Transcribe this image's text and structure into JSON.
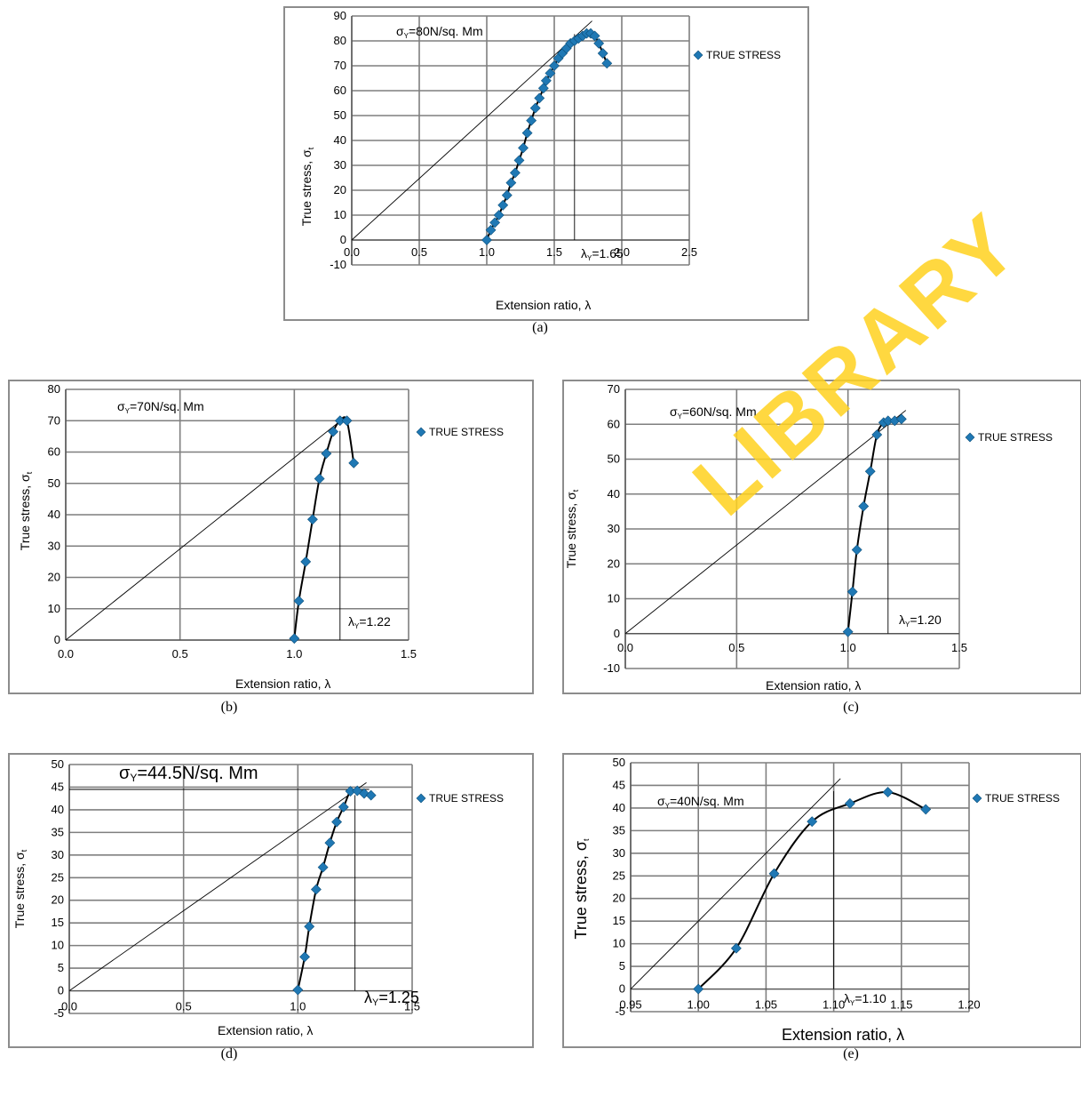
{
  "watermark": {
    "text": "LIBRARY",
    "color": "#ffd21f"
  },
  "colors": {
    "marker": "#1f78b4",
    "line": "#000000",
    "grid": "#7f7f7f",
    "frame": "#8c8c8c"
  },
  "legend_label": "TRUE STRESS",
  "chart_data": [
    {
      "id": "a",
      "type": "scatter",
      "caption": "(a)",
      "xlabel": "Extension ratio,",
      "xlabel_symbol": "λ",
      "ylabel": "True stress,",
      "ylabel_symbol": "σ",
      "ylabel_sub": "t",
      "xlim": [
        0,
        2.5
      ],
      "ylim": [
        -10,
        90
      ],
      "xticks": [
        0,
        0.5,
        1.0,
        1.5,
        2.0,
        2.5
      ],
      "xtick_labels": [
        "0.0",
        "0.5",
        "1.0",
        "1.5",
        "2.0",
        "2.5"
      ],
      "yticks": [
        -10,
        0,
        10,
        20,
        30,
        40,
        50,
        60,
        70,
        80,
        90
      ],
      "ytick_labels": [
        "-10",
        "0",
        "10",
        "20",
        "30",
        "40",
        "50",
        "60",
        "70",
        "80",
        "90"
      ],
      "grid": true,
      "legend": "right",
      "series": [
        {
          "name": "TRUE STRESS",
          "x": [
            1.0,
            1.03,
            1.06,
            1.09,
            1.12,
            1.15,
            1.18,
            1.21,
            1.24,
            1.27,
            1.3,
            1.33,
            1.36,
            1.39,
            1.42,
            1.44,
            1.47,
            1.5,
            1.53,
            1.56,
            1.59,
            1.62,
            1.65,
            1.68,
            1.71,
            1.74,
            1.77,
            1.8,
            1.83,
            1.86,
            1.89
          ],
          "y": [
            0,
            4,
            7,
            10,
            14,
            18,
            23,
            27,
            32,
            37,
            43,
            48,
            53,
            57,
            61,
            64,
            67,
            70,
            73,
            75,
            77,
            79,
            80,
            81,
            82,
            83,
            83,
            82,
            79,
            75,
            71
          ]
        }
      ],
      "annotations": {
        "sigma_label": "σ",
        "sigma_sub": "Y",
        "sigma_text": "=80N/sq. Mm",
        "lambda_label": "λ",
        "lambda_sub": "Y",
        "lambda_text": "=1.65",
        "lambda_y": 1.65,
        "tangent_end": [
          1.78,
          88
        ]
      }
    },
    {
      "id": "b",
      "type": "scatter",
      "caption": "(b)",
      "xlabel": "Extension ratio,",
      "xlabel_symbol": "λ",
      "ylabel": "True stress,",
      "ylabel_symbol": "σ",
      "ylabel_sub": "t",
      "xlim": [
        0,
        1.5
      ],
      "ylim": [
        0,
        80
      ],
      "xticks": [
        0,
        0.5,
        1.0,
        1.5
      ],
      "xtick_labels": [
        "0.0",
        "0.5",
        "1.0",
        "1.5"
      ],
      "yticks": [
        0,
        10,
        20,
        30,
        40,
        50,
        60,
        70,
        80
      ],
      "ytick_labels": [
        "0",
        "10",
        "20",
        "30",
        "40",
        "50",
        "60",
        "70",
        "80"
      ],
      "grid": true,
      "legend": "right",
      "series": [
        {
          "name": "TRUE STRESS",
          "x": [
            1.0,
            1.02,
            1.05,
            1.08,
            1.11,
            1.14,
            1.17,
            1.2,
            1.23,
            1.26
          ],
          "y": [
            0.5,
            12.5,
            25,
            38.5,
            51.5,
            59.5,
            66.5,
            70,
            70,
            56.5
          ]
        }
      ],
      "annotations": {
        "sigma_label": "σ",
        "sigma_sub": "Y",
        "sigma_text": "=70N/sq. Mm",
        "lambda_label": "λ",
        "lambda_sub": "Y",
        "lambda_text": "=1.22",
        "lambda_y": 1.2,
        "tangent_end": [
          1.22,
          71
        ]
      }
    },
    {
      "id": "c",
      "type": "scatter",
      "caption": "(c)",
      "xlabel": "Extension ratio,",
      "xlabel_symbol": "λ",
      "ylabel": "True stress,",
      "ylabel_symbol": "σ",
      "ylabel_sub": "t",
      "xlim": [
        0,
        1.5
      ],
      "ylim": [
        -10,
        70
      ],
      "xticks": [
        0,
        0.5,
        1.0,
        1.5
      ],
      "xtick_labels": [
        "0.0",
        "0.5",
        "1.0",
        "1.5"
      ],
      "yticks": [
        -10,
        0,
        10,
        20,
        30,
        40,
        50,
        60,
        70
      ],
      "ytick_labels": [
        "-10",
        "0",
        "10",
        "20",
        "30",
        "40",
        "50",
        "60",
        "70"
      ],
      "grid": true,
      "legend": "right",
      "series": [
        {
          "name": "TRUE STRESS",
          "x": [
            1.0,
            1.02,
            1.04,
            1.07,
            1.1,
            1.13,
            1.16,
            1.18,
            1.21,
            1.24
          ],
          "y": [
            0.5,
            12,
            24,
            36.5,
            46.5,
            57,
            60.5,
            61,
            61,
            61.5
          ]
        }
      ],
      "annotations": {
        "sigma_label": "σ",
        "sigma_sub": "Y",
        "sigma_text": "=60N/sq. Mm",
        "lambda_label": "λ",
        "lambda_sub": "Y",
        "lambda_text": "=1.20",
        "lambda_y": 1.18,
        "tangent_end": [
          1.26,
          64
        ]
      }
    },
    {
      "id": "d",
      "type": "scatter",
      "caption": "(d)",
      "xlabel": "Extension ratio,",
      "xlabel_symbol": "λ",
      "ylabel": "True stress,",
      "ylabel_symbol": "σ",
      "ylabel_sub": "t",
      "xlim": [
        0,
        1.5
      ],
      "ylim": [
        -5,
        50
      ],
      "xticks": [
        0,
        0.5,
        1.0,
        1.5
      ],
      "xtick_labels": [
        "0.0",
        "0.5",
        "1.0",
        "1.5"
      ],
      "yticks": [
        -5,
        0,
        5,
        10,
        15,
        20,
        25,
        30,
        35,
        40,
        45,
        50
      ],
      "ytick_labels": [
        "-5",
        "0",
        "5",
        "10",
        "15",
        "20",
        "25",
        "30",
        "35",
        "40",
        "45",
        "50"
      ],
      "grid": true,
      "legend": "right",
      "series": [
        {
          "name": "TRUE STRESS",
          "x": [
            1.0,
            1.03,
            1.05,
            1.08,
            1.11,
            1.14,
            1.17,
            1.2,
            1.23,
            1.26,
            1.29,
            1.32
          ],
          "y": [
            0.2,
            7.5,
            14.2,
            22.4,
            27.3,
            32.7,
            37.3,
            40.6,
            44.1,
            44.2,
            43.6,
            43.2
          ]
        }
      ],
      "annotations": {
        "sigma_label": "σ",
        "sigma_sub": "Y",
        "sigma_text": "=44.5N/sq. Mm",
        "lambda_label": "λ",
        "lambda_sub": "Y",
        "lambda_text": "=1.25",
        "lambda_y": 1.25,
        "sigma_y": 44.5,
        "tangent_end": [
          1.3,
          46
        ]
      }
    },
    {
      "id": "e",
      "type": "scatter",
      "caption": "(e)",
      "xlabel": "Extension ratio,",
      "xlabel_symbol": "λ",
      "ylabel": "True stress,",
      "ylabel_symbol": "σ",
      "ylabel_sub": "t",
      "xlim": [
        0.95,
        1.2
      ],
      "ylim": [
        -5,
        50
      ],
      "xticks": [
        0.95,
        1.0,
        1.05,
        1.1,
        1.15,
        1.2
      ],
      "xtick_labels": [
        "0.95",
        "1.00",
        "1.05",
        "1.10",
        "1.15",
        "1.20"
      ],
      "yticks": [
        -5,
        0,
        5,
        10,
        15,
        20,
        25,
        30,
        35,
        40,
        45,
        50
      ],
      "ytick_labels": [
        "-5",
        "0",
        "5",
        "10",
        "15",
        "20",
        "25",
        "30",
        "35",
        "40",
        "45",
        "50"
      ],
      "grid": true,
      "legend": "right",
      "series": [
        {
          "name": "TRUE STRESS",
          "x": [
            1.0,
            1.028,
            1.056,
            1.084,
            1.112,
            1.14,
            1.168
          ],
          "y": [
            0,
            9,
            25.5,
            37,
            41,
            43.5,
            39.7
          ]
        }
      ],
      "annotations": {
        "sigma_label": "σ",
        "sigma_sub": "Y",
        "sigma_text": "=40N/sq. Mm",
        "lambda_label": "λ",
        "lambda_sub": "Y",
        "lambda_text": "=1.10",
        "lambda_y": 1.1,
        "tangent_end": [
          1.105,
          46.5
        ]
      }
    }
  ]
}
